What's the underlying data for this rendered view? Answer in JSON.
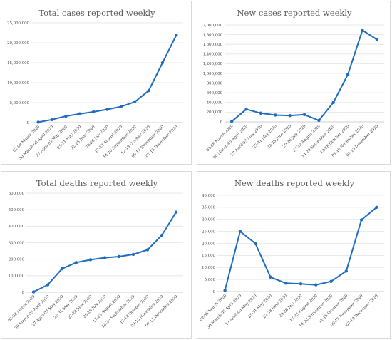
{
  "chart_data": [
    {
      "type": "line",
      "title": "Total cases reported weekly",
      "xlabel": "",
      "ylabel": "",
      "categories": [
        "02-08 March 2020",
        "30 March-05 April 2020",
        "27 April-03 May 2020",
        "25-31 May 2020",
        "22-28 June 2020",
        "20-26 July 2020",
        "17-23 August 2020",
        "14-20 September 2020",
        "12-18 October 2020",
        "09-15 November 2020",
        "07-13 December 2020"
      ],
      "yticks": [
        "0",
        "5,000,000",
        "10,000,000",
        "15,000,000",
        "20,000,000",
        "25,000,000"
      ],
      "ylim": [
        0,
        25000000
      ],
      "series": [
        {
          "values": [
            100000,
            750000,
            1600000,
            2200000,
            2700000,
            3300000,
            4000000,
            5200000,
            8000000,
            15000000,
            21900000
          ]
        }
      ],
      "color": "#1f6cc1"
    },
    {
      "type": "line",
      "title": "New cases reported weekly",
      "xlabel": "",
      "ylabel": "",
      "categories": [
        "02-08 March 2020",
        "30 March-05 April 2020",
        "27 April-03 May 2020",
        "25-31 May 2020",
        "22-28 June 2020",
        "20-26 July 2020",
        "17-23 August 2020",
        "14-20 September 2020",
        "12-18 October 2020",
        "09-15 November 2020",
        "07-13 December 2020"
      ],
      "yticks": [
        "0",
        "200,000",
        "400,000",
        "600,000",
        "800,000",
        "1,000,000",
        "1,200,000",
        "1,400,000",
        "1,600,000",
        "1,800,000",
        "2,000,000"
      ],
      "ylim": [
        0,
        2000000
      ],
      "series": [
        {
          "values": [
            10000,
            260000,
            180000,
            140000,
            130000,
            150000,
            30000,
            400000,
            980000,
            1890000,
            1700000
          ]
        }
      ],
      "color": "#1f6cc1"
    },
    {
      "type": "line",
      "title": "Total deaths reported weekly",
      "xlabel": "",
      "ylabel": "",
      "categories": [
        "02-08 March 2020",
        "30 March-05 April 2020",
        "27 April-03 May 2020",
        "25-31 May 2020",
        "22-28 June 2020",
        "20-26 July 2020",
        "17-23 August 2020",
        "14-20 September 2020",
        "12-18 October 2020",
        "09-15 November 2020",
        "07-13 December 2020"
      ],
      "yticks": [
        "0",
        "100,000",
        "200,000",
        "300,000",
        "400,000",
        "500,000",
        "600,000"
      ],
      "ylim": [
        0,
        600000
      ],
      "series": [
        {
          "values": [
            2000,
            45000,
            142000,
            180000,
            197000,
            209000,
            216000,
            229000,
            257000,
            345000,
            485000
          ]
        }
      ],
      "color": "#1f6cc1"
    },
    {
      "type": "line",
      "title": "New deaths reported weekly",
      "xlabel": "",
      "ylabel": "",
      "categories": [
        "02-08 March 2020",
        "30 March-05 April 2020",
        "27 April-03 May 2020",
        "25-31 May 2020",
        "22-28 June 2020",
        "20-26 July 2020",
        "17-23 August 2020",
        "14-20 September 2020",
        "12-18 October 2020",
        "09-15 November 2020",
        "07-13 December 2020"
      ],
      "yticks": [
        "0",
        "5,000",
        "10,000",
        "15,000",
        "20,000",
        "25,000",
        "30,000",
        "35,000",
        "40,000"
      ],
      "ylim": [
        0,
        40000
      ],
      "series": [
        {
          "values": [
            500,
            25000,
            20000,
            6000,
            3500,
            3200,
            2800,
            4200,
            8500,
            29800,
            35000
          ]
        }
      ],
      "color": "#1f6cc1"
    }
  ]
}
